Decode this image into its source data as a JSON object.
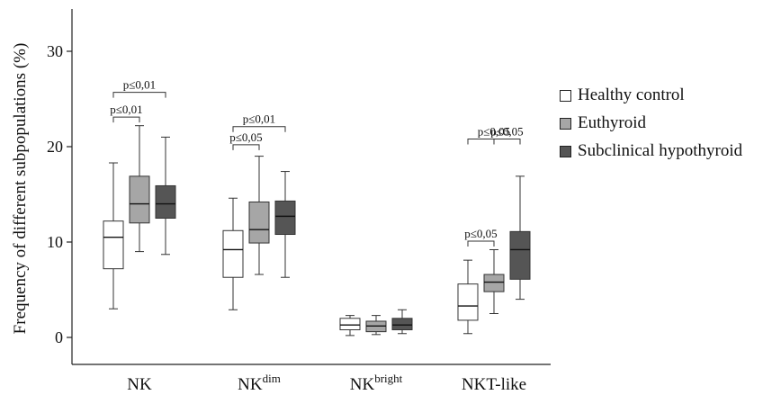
{
  "chart_data": {
    "type": "box",
    "ylabel": "Frequency of different subpopulations (%)",
    "yticks": [
      0,
      10,
      20,
      30
    ],
    "ylim": [
      -3,
      35
    ],
    "categories": [
      {
        "main": "NK",
        "sup": ""
      },
      {
        "main": "NK",
        "sup": "dim"
      },
      {
        "main": "NK",
        "sup": "bright"
      },
      {
        "main": "NKT-like",
        "sup": ""
      }
    ],
    "series": [
      {
        "name": "Healthy control",
        "color": "#ffffff",
        "boxes": [
          {
            "min": 3.0,
            "q1": 7.2,
            "median": 10.5,
            "q3": 12.2,
            "max": 18.3
          },
          {
            "min": 2.9,
            "q1": 6.3,
            "median": 9.2,
            "q3": 11.2,
            "max": 14.6
          },
          {
            "min": 0.2,
            "q1": 0.8,
            "median": 1.3,
            "q3": 2.0,
            "max": 2.3
          },
          {
            "min": 0.4,
            "q1": 1.8,
            "median": 3.3,
            "q3": 5.6,
            "max": 8.1
          }
        ]
      },
      {
        "name": "Euthyroid",
        "color": "#a6a6a6",
        "boxes": [
          {
            "min": 9.0,
            "q1": 12.0,
            "median": 14.0,
            "q3": 16.9,
            "max": 22.2
          },
          {
            "min": 6.6,
            "q1": 9.9,
            "median": 11.3,
            "q3": 14.2,
            "max": 19.0
          },
          {
            "min": 0.3,
            "q1": 0.6,
            "median": 1.2,
            "q3": 1.7,
            "max": 2.3
          },
          {
            "min": 2.5,
            "q1": 4.8,
            "median": 5.8,
            "q3": 6.6,
            "max": 9.2
          }
        ]
      },
      {
        "name": "Subclinical hypothyroid",
        "color": "#555555",
        "boxes": [
          {
            "min": 8.7,
            "q1": 12.5,
            "median": 14.0,
            "q3": 15.9,
            "max": 21.0
          },
          {
            "min": 6.3,
            "q1": 10.8,
            "median": 12.7,
            "q3": 14.3,
            "max": 17.4
          },
          {
            "min": 0.4,
            "q1": 0.8,
            "median": 1.3,
            "q3": 2.0,
            "max": 2.9
          },
          {
            "min": 4.0,
            "q1": 6.1,
            "median": 9.2,
            "q3": 11.1,
            "max": 16.9
          }
        ]
      }
    ],
    "annotations": [
      {
        "text": "p≤0,01",
        "category": 0,
        "from": 0,
        "to": 1,
        "y": 23.1
      },
      {
        "text": "p≤0,01",
        "category": 0,
        "from": 0,
        "to": 2,
        "y": 25.7
      },
      {
        "text": "p≤0,05",
        "category": 1,
        "from": 0,
        "to": 1,
        "y": 20.2
      },
      {
        "text": "p≤0,01",
        "category": 1,
        "from": 0,
        "to": 2,
        "y": 22.1
      },
      {
        "text": "p≤0,05",
        "category": 3,
        "from": 1,
        "to": 2,
        "y": 20.8
      },
      {
        "text": "p≤0,05",
        "category": 3,
        "from": 0,
        "to": 2,
        "y": 20.8
      },
      {
        "text": "p≤0,05",
        "category": 3,
        "from": 0,
        "to": 1,
        "y": 10.1
      }
    ],
    "legend_position": "right",
    "grid": false
  }
}
